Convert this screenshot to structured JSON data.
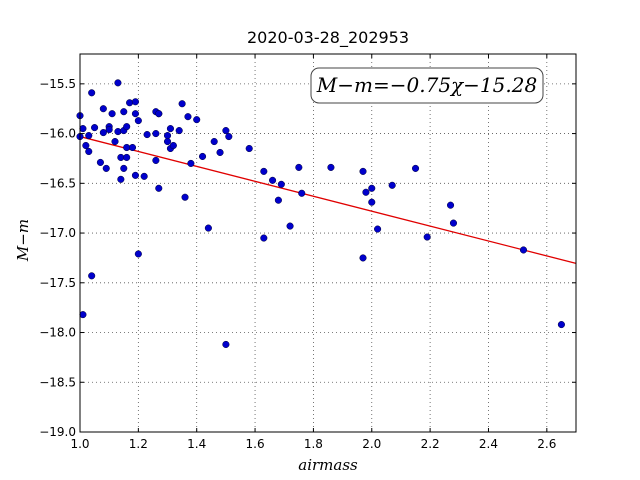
{
  "chart_data": {
    "type": "scatter",
    "title": "2020-03-28_202953",
    "xlabel": "airmass",
    "ylabel": "M−m",
    "xlim": [
      1.0,
      2.7
    ],
    "ylim": [
      -19.0,
      -15.2
    ],
    "x_ticks": [
      1.0,
      1.2,
      1.4,
      1.6,
      1.8,
      2.0,
      2.2,
      2.4,
      2.6
    ],
    "x_tick_labels": [
      "1.0",
      "1.2",
      "1.4",
      "1.6",
      "1.8",
      "2.0",
      "2.2",
      "2.4",
      "2.6"
    ],
    "y_ticks": [
      -15.5,
      -16.0,
      -16.5,
      -17.0,
      -17.5,
      -18.0,
      -18.5,
      -19.0
    ],
    "y_tick_labels": [
      "−15.5",
      "−16.0",
      "−16.5",
      "−17.0",
      "−17.5",
      "−18.0",
      "−18.5",
      "−19.0"
    ],
    "grid": true,
    "annotation": "M−m=−0.75χ−15.28",
    "fit": {
      "slope": -0.75,
      "intercept": -15.28,
      "color": "#e00000"
    },
    "point_color": "#0000cc",
    "points": [
      [
        1.0,
        -15.82
      ],
      [
        1.0,
        -16.03
      ],
      [
        1.01,
        -15.95
      ],
      [
        1.01,
        -17.82
      ],
      [
        1.02,
        -16.12
      ],
      [
        1.03,
        -16.18
      ],
      [
        1.03,
        -16.02
      ],
      [
        1.04,
        -15.59
      ],
      [
        1.04,
        -17.43
      ],
      [
        1.05,
        -15.94
      ],
      [
        1.07,
        -16.29
      ],
      [
        1.08,
        -15.75
      ],
      [
        1.08,
        -15.99
      ],
      [
        1.09,
        -16.35
      ],
      [
        1.1,
        -15.93
      ],
      [
        1.1,
        -15.96
      ],
      [
        1.11,
        -15.8
      ],
      [
        1.12,
        -16.08
      ],
      [
        1.13,
        -15.98
      ],
      [
        1.13,
        -15.49
      ],
      [
        1.14,
        -16.46
      ],
      [
        1.14,
        -16.24
      ],
      [
        1.15,
        -16.35
      ],
      [
        1.15,
        -15.97
      ],
      [
        1.15,
        -15.78
      ],
      [
        1.16,
        -15.93
      ],
      [
        1.16,
        -16.14
      ],
      [
        1.16,
        -16.24
      ],
      [
        1.17,
        -15.69
      ],
      [
        1.18,
        -16.14
      ],
      [
        1.19,
        -16.42
      ],
      [
        1.19,
        -15.68
      ],
      [
        1.19,
        -15.8
      ],
      [
        1.2,
        -15.87
      ],
      [
        1.2,
        -17.21
      ],
      [
        1.22,
        -16.43
      ],
      [
        1.23,
        -16.01
      ],
      [
        1.26,
        -16.0
      ],
      [
        1.26,
        -15.78
      ],
      [
        1.26,
        -16.27
      ],
      [
        1.27,
        -15.8
      ],
      [
        1.27,
        -15.8
      ],
      [
        1.27,
        -16.55
      ],
      [
        1.3,
        -16.08
      ],
      [
        1.3,
        -16.02
      ],
      [
        1.31,
        -15.95
      ],
      [
        1.31,
        -16.15
      ],
      [
        1.32,
        -16.12
      ],
      [
        1.34,
        -15.97
      ],
      [
        1.35,
        -15.7
      ],
      [
        1.36,
        -16.64
      ],
      [
        1.37,
        -15.83
      ],
      [
        1.38,
        -16.3
      ],
      [
        1.4,
        -15.86
      ],
      [
        1.42,
        -16.23
      ],
      [
        1.44,
        -16.95
      ],
      [
        1.46,
        -16.08
      ],
      [
        1.48,
        -16.19
      ],
      [
        1.5,
        -15.97
      ],
      [
        1.5,
        -18.12
      ],
      [
        1.51,
        -16.03
      ],
      [
        1.58,
        -16.15
      ],
      [
        1.63,
        -16.38
      ],
      [
        1.63,
        -17.05
      ],
      [
        1.66,
        -16.47
      ],
      [
        1.68,
        -16.67
      ],
      [
        1.69,
        -16.51
      ],
      [
        1.72,
        -16.93
      ],
      [
        1.75,
        -16.34
      ],
      [
        1.76,
        -16.6
      ],
      [
        1.86,
        -16.34
      ],
      [
        1.97,
        -16.38
      ],
      [
        1.97,
        -17.25
      ],
      [
        1.98,
        -16.59
      ],
      [
        2.0,
        -16.55
      ],
      [
        2.0,
        -16.69
      ],
      [
        2.02,
        -16.96
      ],
      [
        2.07,
        -16.52
      ],
      [
        2.15,
        -16.35
      ],
      [
        2.19,
        -17.04
      ],
      [
        2.27,
        -16.72
      ],
      [
        2.28,
        -16.9
      ],
      [
        2.52,
        -17.17
      ],
      [
        2.65,
        -17.92
      ]
    ]
  }
}
